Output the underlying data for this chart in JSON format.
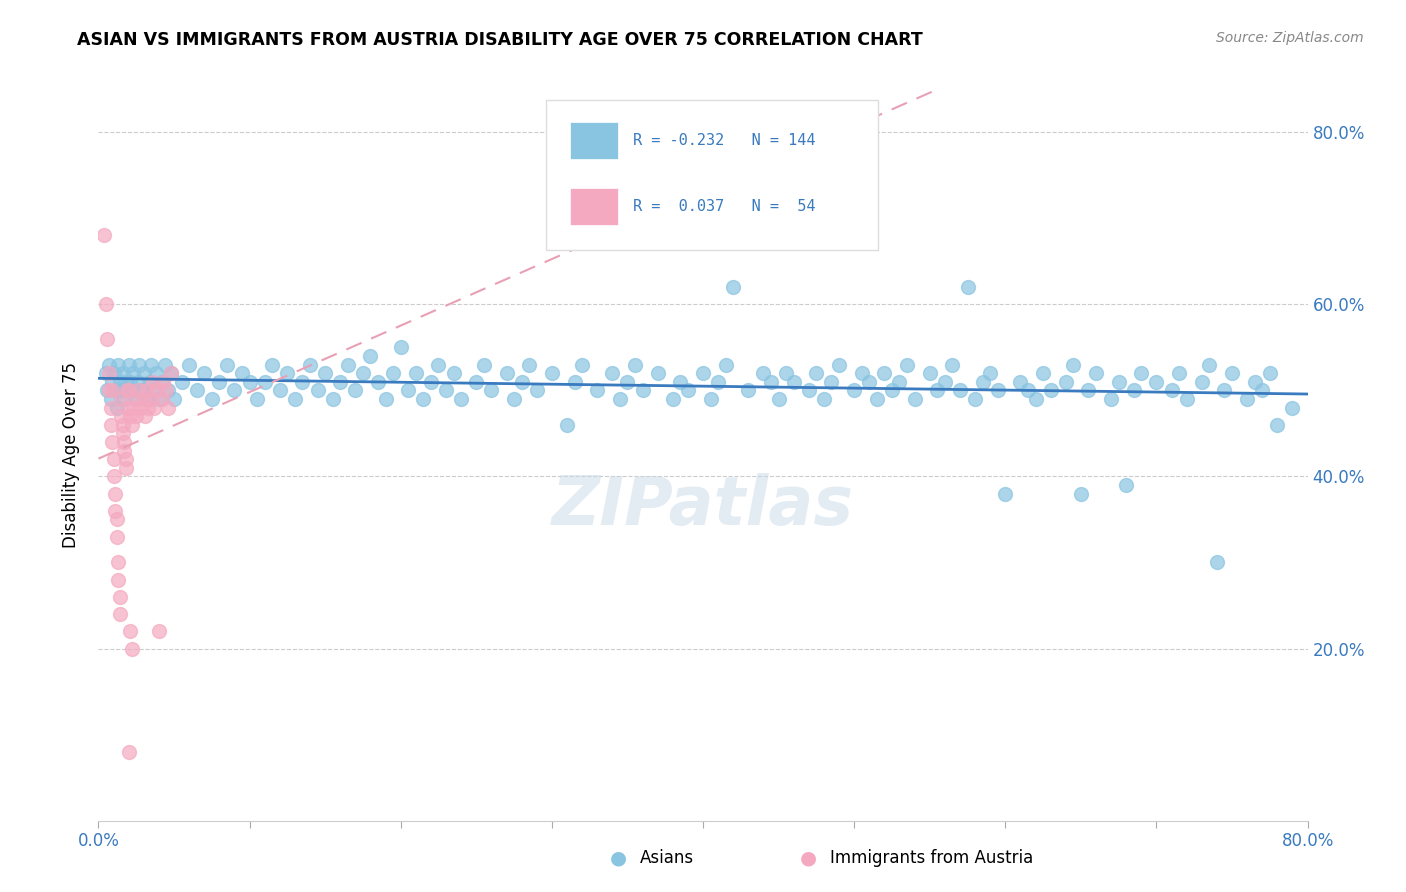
{
  "title": "ASIAN VS IMMIGRANTS FROM AUSTRIA DISABILITY AGE OVER 75 CORRELATION CHART",
  "source": "Source: ZipAtlas.com",
  "ylabel": "Disability Age Over 75",
  "xlim": [
    0.0,
    0.8
  ],
  "ylim": [
    0.0,
    0.85
  ],
  "asian_color": "#89c4e1",
  "austria_color": "#f4a9c0",
  "asian_line_color": "#3a7abf",
  "austria_line_color": "#e8a0b4",
  "legend_color": "#3a7abf",
  "watermark": "ZIPatlas",
  "asian_scatter": [
    [
      0.005,
      0.52
    ],
    [
      0.006,
      0.5
    ],
    [
      0.007,
      0.53
    ],
    [
      0.008,
      0.49
    ],
    [
      0.009,
      0.51
    ],
    [
      0.01,
      0.52
    ],
    [
      0.011,
      0.5
    ],
    [
      0.012,
      0.48
    ],
    [
      0.013,
      0.53
    ],
    [
      0.014,
      0.51
    ],
    [
      0.015,
      0.5
    ],
    [
      0.016,
      0.52
    ],
    [
      0.017,
      0.49
    ],
    [
      0.018,
      0.51
    ],
    [
      0.019,
      0.5
    ],
    [
      0.02,
      0.53
    ],
    [
      0.021,
      0.51
    ],
    [
      0.022,
      0.5
    ],
    [
      0.023,
      0.52
    ],
    [
      0.025,
      0.49
    ],
    [
      0.026,
      0.51
    ],
    [
      0.027,
      0.53
    ],
    [
      0.028,
      0.5
    ],
    [
      0.03,
      0.52
    ],
    [
      0.032,
      0.49
    ],
    [
      0.034,
      0.51
    ],
    [
      0.035,
      0.53
    ],
    [
      0.036,
      0.5
    ],
    [
      0.038,
      0.52
    ],
    [
      0.04,
      0.49
    ],
    [
      0.042,
      0.51
    ],
    [
      0.044,
      0.53
    ],
    [
      0.046,
      0.5
    ],
    [
      0.048,
      0.52
    ],
    [
      0.05,
      0.49
    ],
    [
      0.055,
      0.51
    ],
    [
      0.06,
      0.53
    ],
    [
      0.065,
      0.5
    ],
    [
      0.07,
      0.52
    ],
    [
      0.075,
      0.49
    ],
    [
      0.08,
      0.51
    ],
    [
      0.085,
      0.53
    ],
    [
      0.09,
      0.5
    ],
    [
      0.095,
      0.52
    ],
    [
      0.1,
      0.51
    ],
    [
      0.105,
      0.49
    ],
    [
      0.11,
      0.51
    ],
    [
      0.115,
      0.53
    ],
    [
      0.12,
      0.5
    ],
    [
      0.125,
      0.52
    ],
    [
      0.13,
      0.49
    ],
    [
      0.135,
      0.51
    ],
    [
      0.14,
      0.53
    ],
    [
      0.145,
      0.5
    ],
    [
      0.15,
      0.52
    ],
    [
      0.155,
      0.49
    ],
    [
      0.16,
      0.51
    ],
    [
      0.165,
      0.53
    ],
    [
      0.17,
      0.5
    ],
    [
      0.175,
      0.52
    ],
    [
      0.18,
      0.54
    ],
    [
      0.185,
      0.51
    ],
    [
      0.19,
      0.49
    ],
    [
      0.195,
      0.52
    ],
    [
      0.2,
      0.55
    ],
    [
      0.205,
      0.5
    ],
    [
      0.21,
      0.52
    ],
    [
      0.215,
      0.49
    ],
    [
      0.22,
      0.51
    ],
    [
      0.225,
      0.53
    ],
    [
      0.23,
      0.5
    ],
    [
      0.235,
      0.52
    ],
    [
      0.24,
      0.49
    ],
    [
      0.25,
      0.51
    ],
    [
      0.255,
      0.53
    ],
    [
      0.26,
      0.5
    ],
    [
      0.27,
      0.52
    ],
    [
      0.275,
      0.49
    ],
    [
      0.28,
      0.51
    ],
    [
      0.285,
      0.53
    ],
    [
      0.29,
      0.5
    ],
    [
      0.3,
      0.52
    ],
    [
      0.31,
      0.46
    ],
    [
      0.315,
      0.51
    ],
    [
      0.32,
      0.53
    ],
    [
      0.33,
      0.5
    ],
    [
      0.34,
      0.52
    ],
    [
      0.345,
      0.49
    ],
    [
      0.35,
      0.51
    ],
    [
      0.355,
      0.53
    ],
    [
      0.36,
      0.5
    ],
    [
      0.37,
      0.52
    ],
    [
      0.38,
      0.49
    ],
    [
      0.385,
      0.51
    ],
    [
      0.39,
      0.5
    ],
    [
      0.4,
      0.52
    ],
    [
      0.405,
      0.49
    ],
    [
      0.41,
      0.51
    ],
    [
      0.415,
      0.53
    ],
    [
      0.42,
      0.62
    ],
    [
      0.43,
      0.5
    ],
    [
      0.44,
      0.52
    ],
    [
      0.445,
      0.51
    ],
    [
      0.45,
      0.49
    ],
    [
      0.455,
      0.52
    ],
    [
      0.46,
      0.51
    ],
    [
      0.47,
      0.5
    ],
    [
      0.475,
      0.52
    ],
    [
      0.48,
      0.49
    ],
    [
      0.485,
      0.51
    ],
    [
      0.49,
      0.53
    ],
    [
      0.5,
      0.5
    ],
    [
      0.505,
      0.52
    ],
    [
      0.51,
      0.51
    ],
    [
      0.515,
      0.49
    ],
    [
      0.52,
      0.52
    ],
    [
      0.525,
      0.5
    ],
    [
      0.53,
      0.51
    ],
    [
      0.535,
      0.53
    ],
    [
      0.54,
      0.49
    ],
    [
      0.55,
      0.52
    ],
    [
      0.555,
      0.5
    ],
    [
      0.56,
      0.51
    ],
    [
      0.565,
      0.53
    ],
    [
      0.57,
      0.5
    ],
    [
      0.575,
      0.62
    ],
    [
      0.58,
      0.49
    ],
    [
      0.585,
      0.51
    ],
    [
      0.59,
      0.52
    ],
    [
      0.595,
      0.5
    ],
    [
      0.6,
      0.38
    ],
    [
      0.61,
      0.51
    ],
    [
      0.615,
      0.5
    ],
    [
      0.62,
      0.49
    ],
    [
      0.625,
      0.52
    ],
    [
      0.63,
      0.5
    ],
    [
      0.64,
      0.51
    ],
    [
      0.645,
      0.53
    ],
    [
      0.65,
      0.38
    ],
    [
      0.655,
      0.5
    ],
    [
      0.66,
      0.52
    ],
    [
      0.67,
      0.49
    ],
    [
      0.675,
      0.51
    ],
    [
      0.68,
      0.39
    ],
    [
      0.685,
      0.5
    ],
    [
      0.69,
      0.52
    ],
    [
      0.7,
      0.51
    ],
    [
      0.71,
      0.5
    ],
    [
      0.715,
      0.52
    ],
    [
      0.72,
      0.49
    ],
    [
      0.73,
      0.51
    ],
    [
      0.735,
      0.53
    ],
    [
      0.74,
      0.3
    ],
    [
      0.745,
      0.5
    ],
    [
      0.75,
      0.52
    ],
    [
      0.76,
      0.49
    ],
    [
      0.765,
      0.51
    ],
    [
      0.77,
      0.5
    ],
    [
      0.775,
      0.52
    ],
    [
      0.78,
      0.46
    ],
    [
      0.79,
      0.48
    ]
  ],
  "austria_scatter": [
    [
      0.004,
      0.68
    ],
    [
      0.005,
      0.6
    ],
    [
      0.006,
      0.56
    ],
    [
      0.007,
      0.52
    ],
    [
      0.007,
      0.5
    ],
    [
      0.008,
      0.48
    ],
    [
      0.008,
      0.46
    ],
    [
      0.009,
      0.5
    ],
    [
      0.009,
      0.44
    ],
    [
      0.01,
      0.42
    ],
    [
      0.01,
      0.4
    ],
    [
      0.011,
      0.38
    ],
    [
      0.011,
      0.36
    ],
    [
      0.012,
      0.35
    ],
    [
      0.012,
      0.33
    ],
    [
      0.013,
      0.3
    ],
    [
      0.013,
      0.28
    ],
    [
      0.014,
      0.26
    ],
    [
      0.014,
      0.24
    ],
    [
      0.015,
      0.49
    ],
    [
      0.015,
      0.47
    ],
    [
      0.016,
      0.46
    ],
    [
      0.016,
      0.45
    ],
    [
      0.017,
      0.44
    ],
    [
      0.017,
      0.43
    ],
    [
      0.018,
      0.42
    ],
    [
      0.018,
      0.41
    ],
    [
      0.019,
      0.5
    ],
    [
      0.019,
      0.48
    ],
    [
      0.02,
      0.08
    ],
    [
      0.02,
      0.5
    ],
    [
      0.021,
      0.22
    ],
    [
      0.021,
      0.47
    ],
    [
      0.022,
      0.2
    ],
    [
      0.022,
      0.46
    ],
    [
      0.023,
      0.48
    ],
    [
      0.025,
      0.49
    ],
    [
      0.025,
      0.47
    ],
    [
      0.027,
      0.5
    ],
    [
      0.028,
      0.48
    ],
    [
      0.03,
      0.49
    ],
    [
      0.031,
      0.47
    ],
    [
      0.032,
      0.5
    ],
    [
      0.033,
      0.48
    ],
    [
      0.035,
      0.49
    ],
    [
      0.036,
      0.51
    ],
    [
      0.037,
      0.48
    ],
    [
      0.038,
      0.5
    ],
    [
      0.04,
      0.22
    ],
    [
      0.042,
      0.49
    ],
    [
      0.043,
      0.51
    ],
    [
      0.045,
      0.5
    ],
    [
      0.046,
      0.48
    ],
    [
      0.048,
      0.52
    ]
  ]
}
